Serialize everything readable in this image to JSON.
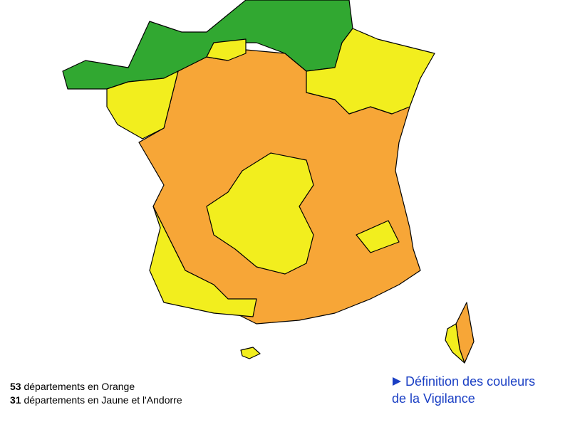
{
  "legend": {
    "items": [
      {
        "count": "53",
        "text": "départements en Orange"
      },
      {
        "count": "31",
        "text": "départements en Jaune et l'Andorre"
      }
    ]
  },
  "link": {
    "lines": [
      "Définition des couleurs",
      "de la Vigilance"
    ]
  }
}
